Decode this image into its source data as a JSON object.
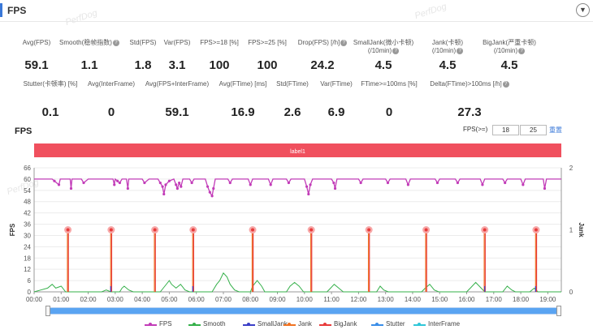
{
  "header": {
    "title": "FPS",
    "collapse_icon": "chevron-down-icon"
  },
  "watermark": "PerfDog",
  "metrics": [
    {
      "label": "Avg(FPS)",
      "value": "59.1",
      "help": false
    },
    {
      "label": "Smooth(稳帧指数)",
      "value": "1.1",
      "help": true
    },
    {
      "label": "Std(FPS)",
      "value": "1.8",
      "help": false
    },
    {
      "label": "Var(FPS)",
      "value": "3.1",
      "help": false
    },
    {
      "label": "FPS>=18 [%]",
      "value": "100",
      "help": false
    },
    {
      "label": "FPS>=25 [%]",
      "value": "100",
      "help": false
    },
    {
      "label": "Drop(FPS) [/h]",
      "value": "24.2",
      "help": true
    },
    {
      "label": "SmallJank(微小卡顿)",
      "label2": "(/10min)",
      "value": "4.5",
      "help": true
    },
    {
      "label": "Jank(卡顿)",
      "label2": "(/10min)",
      "value": "4.5",
      "help": true
    },
    {
      "label": "BigJank(严重卡顿)",
      "label2": "(/10min)",
      "value": "4.5",
      "help": true
    },
    {
      "label": "Stutter(卡顿率) [%]",
      "value": "0.1",
      "help": false
    },
    {
      "label": "Avg(InterFrame)",
      "value": "0",
      "help": false
    },
    {
      "label": "Avg(FPS+InterFrame)",
      "value": "59.1",
      "help": false
    },
    {
      "label": "Avg(FTime) [ms]",
      "value": "16.9",
      "help": false
    },
    {
      "label": "Std(FTime)",
      "value": "2.6",
      "help": false
    },
    {
      "label": "Var(FTime)",
      "value": "6.9",
      "help": false
    },
    {
      "label": "FTime>=100ms [%]",
      "value": "0",
      "help": false
    },
    {
      "label": "Delta(FTime)>100ms [/h]",
      "value": "27.3",
      "help": true
    }
  ],
  "chart_title": "FPS",
  "fps_threshold": {
    "label": "FPS(>=)",
    "value1": "18",
    "value2": "25",
    "reset_label": "重置"
  },
  "label_band": {
    "text": "label1",
    "color": "#f0505e"
  },
  "chart_data": {
    "type": "line",
    "ylabel": "FPS",
    "y2label": "Jank",
    "ylim": [
      0,
      66
    ],
    "y2lim": [
      0,
      2
    ],
    "yticks": [
      "0",
      "6",
      "12",
      "18",
      "24",
      "30",
      "36",
      "42",
      "48",
      "54",
      "60",
      "66"
    ],
    "y2ticks": [
      "0",
      "1",
      "2"
    ],
    "xlim": [
      0,
      1170
    ],
    "xticks": [
      "00:00",
      "01:00",
      "02:00",
      "03:00",
      "04:00",
      "05:00",
      "06:00",
      "07:00",
      "08:00",
      "09:00",
      "10:00",
      "11:00",
      "12:00",
      "13:00",
      "14:00",
      "15:00",
      "16:00",
      "17:00",
      "18:00",
      "19:00"
    ],
    "series": [
      {
        "name": "FPS",
        "color": "#c23cb8",
        "axis": "left",
        "points": [
          [
            0,
            60
          ],
          [
            40,
            60
          ],
          [
            45,
            59
          ],
          [
            55,
            57
          ],
          [
            58,
            60
          ],
          [
            80,
            60
          ],
          [
            82,
            55
          ],
          [
            84,
            60
          ],
          [
            105,
            60
          ],
          [
            110,
            58
          ],
          [
            120,
            60
          ],
          [
            175,
            60
          ],
          [
            178,
            57
          ],
          [
            180,
            60
          ],
          [
            185,
            59
          ],
          [
            190,
            58
          ],
          [
            195,
            60
          ],
          [
            205,
            60
          ],
          [
            208,
            55
          ],
          [
            210,
            60
          ],
          [
            240,
            60
          ],
          [
            245,
            58
          ],
          [
            255,
            60
          ],
          [
            275,
            60
          ],
          [
            280,
            58
          ],
          [
            285,
            56
          ],
          [
            288,
            52
          ],
          [
            292,
            57
          ],
          [
            300,
            59
          ],
          [
            310,
            60
          ],
          [
            315,
            57
          ],
          [
            318,
            55
          ],
          [
            322,
            58
          ],
          [
            326,
            56
          ],
          [
            330,
            60
          ],
          [
            345,
            60
          ],
          [
            350,
            58
          ],
          [
            355,
            60
          ],
          [
            380,
            60
          ],
          [
            385,
            56
          ],
          [
            390,
            53
          ],
          [
            395,
            51
          ],
          [
            398,
            55
          ],
          [
            402,
            60
          ],
          [
            430,
            60
          ],
          [
            435,
            58
          ],
          [
            440,
            60
          ],
          [
            475,
            60
          ],
          [
            480,
            57
          ],
          [
            485,
            60
          ],
          [
            520,
            60
          ],
          [
            525,
            57
          ],
          [
            530,
            60
          ],
          [
            560,
            60
          ],
          [
            565,
            58
          ],
          [
            570,
            60
          ],
          [
            600,
            60
          ],
          [
            605,
            56
          ],
          [
            609,
            52
          ],
          [
            613,
            57
          ],
          [
            618,
            60
          ],
          [
            660,
            60
          ],
          [
            665,
            58
          ],
          [
            668,
            55
          ],
          [
            672,
            60
          ],
          [
            720,
            60
          ],
          [
            725,
            58
          ],
          [
            730,
            60
          ],
          [
            780,
            60
          ],
          [
            785,
            58
          ],
          [
            790,
            60
          ],
          [
            825,
            60
          ],
          [
            830,
            57
          ],
          [
            835,
            60
          ],
          [
            890,
            60
          ],
          [
            895,
            58
          ],
          [
            900,
            60
          ],
          [
            935,
            60
          ],
          [
            940,
            58
          ],
          [
            945,
            60
          ],
          [
            990,
            60
          ],
          [
            995,
            57
          ],
          [
            1000,
            60
          ],
          [
            1040,
            60
          ],
          [
            1045,
            58
          ],
          [
            1050,
            60
          ],
          [
            1080,
            60
          ],
          [
            1085,
            57
          ],
          [
            1090,
            60
          ],
          [
            1130,
            60
          ],
          [
            1133,
            55
          ],
          [
            1137,
            60
          ],
          [
            1170,
            60
          ]
        ]
      },
      {
        "name": "Smooth",
        "color": "#35b04a",
        "axis": "left",
        "points": [
          [
            0,
            0
          ],
          [
            15,
            1
          ],
          [
            30,
            2
          ],
          [
            40,
            4
          ],
          [
            48,
            2
          ],
          [
            60,
            3
          ],
          [
            70,
            0
          ],
          [
            150,
            0
          ],
          [
            160,
            1
          ],
          [
            170,
            0
          ],
          [
            190,
            0
          ],
          [
            195,
            2
          ],
          [
            200,
            3
          ],
          [
            210,
            1
          ],
          [
            220,
            0
          ],
          [
            280,
            0
          ],
          [
            290,
            3
          ],
          [
            300,
            6
          ],
          [
            305,
            4
          ],
          [
            315,
            2
          ],
          [
            325,
            4
          ],
          [
            335,
            1
          ],
          [
            345,
            0
          ],
          [
            395,
            0
          ],
          [
            405,
            4
          ],
          [
            412,
            6
          ],
          [
            420,
            10
          ],
          [
            428,
            8
          ],
          [
            435,
            4
          ],
          [
            445,
            1
          ],
          [
            455,
            0
          ],
          [
            480,
            0
          ],
          [
            485,
            3
          ],
          [
            495,
            6
          ],
          [
            505,
            3
          ],
          [
            512,
            0
          ],
          [
            560,
            0
          ],
          [
            568,
            3
          ],
          [
            578,
            5
          ],
          [
            588,
            3
          ],
          [
            598,
            0
          ],
          [
            650,
            0
          ],
          [
            658,
            2
          ],
          [
            666,
            4
          ],
          [
            676,
            2
          ],
          [
            686,
            0
          ],
          [
            760,
            0
          ],
          [
            768,
            3
          ],
          [
            776,
            1
          ],
          [
            786,
            0
          ],
          [
            860,
            0
          ],
          [
            868,
            2
          ],
          [
            878,
            4
          ],
          [
            888,
            1
          ],
          [
            898,
            0
          ],
          [
            960,
            0
          ],
          [
            968,
            2
          ],
          [
            980,
            5
          ],
          [
            992,
            2
          ],
          [
            1000,
            0
          ],
          [
            1040,
            0
          ],
          [
            1050,
            3
          ],
          [
            1060,
            1
          ],
          [
            1068,
            0
          ],
          [
            1100,
            0
          ],
          [
            1110,
            2
          ],
          [
            1118,
            0
          ],
          [
            1170,
            0
          ]
        ]
      },
      {
        "name": "Jank",
        "color": "#f07322",
        "axis": "right",
        "points": [
          [
            75,
            1
          ],
          [
            171,
            1
          ],
          [
            268,
            1
          ],
          [
            353,
            1
          ],
          [
            485,
            1
          ],
          [
            615,
            1
          ],
          [
            743,
            1
          ],
          [
            870,
            1
          ],
          [
            1000,
            1
          ],
          [
            1114,
            1
          ]
        ]
      },
      {
        "name": "BigJank",
        "color": "#e83a3a",
        "axis": "right",
        "points": [
          [
            75,
            1
          ],
          [
            171,
            1
          ],
          [
            268,
            1
          ],
          [
            353,
            1
          ],
          [
            485,
            1
          ],
          [
            615,
            1
          ],
          [
            743,
            1
          ],
          [
            870,
            1
          ],
          [
            1000,
            1
          ],
          [
            1114,
            1
          ]
        ]
      },
      {
        "name": "SmallJank",
        "color": "#3b3fc7",
        "axis": "right",
        "points": [
          [
            170,
            0.04
          ],
          [
            352,
            0.04
          ],
          [
            1000,
            0.04
          ],
          [
            1113,
            0.04
          ]
        ]
      }
    ]
  },
  "legend": [
    {
      "label": "FPS",
      "color": "#c23cb8"
    },
    {
      "label": "Smooth",
      "color": "#35b04a"
    },
    {
      "label": "SmallJank",
      "color": "#3b3fc7"
    },
    {
      "label": "Jank",
      "color": "#f07322"
    },
    {
      "label": "BigJank",
      "color": "#e83a3a"
    },
    {
      "label": "Stutter",
      "color": "#3a8ee8"
    },
    {
      "label": "InterFrame",
      "color": "#2fc6d8"
    }
  ],
  "range_slider": {
    "start": 0,
    "end": 1,
    "fill_color": "#5aa4f2"
  }
}
